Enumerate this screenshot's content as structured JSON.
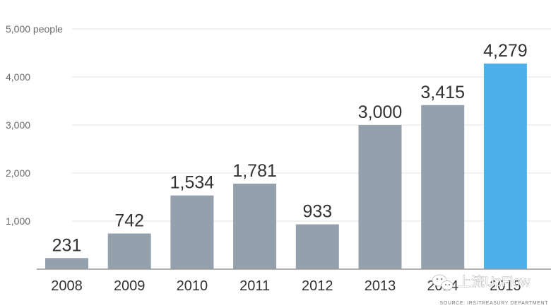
{
  "chart_data": {
    "type": "bar",
    "categories": [
      "2008",
      "2009",
      "2010",
      "2011",
      "2012",
      "2013",
      "2014",
      "2015"
    ],
    "values": [
      231,
      742,
      1534,
      1781,
      933,
      3000,
      3415,
      4279
    ],
    "value_labels": [
      "231",
      "742",
      "1,534",
      "1,781",
      "933",
      "3,000",
      "3,415",
      "4,279"
    ],
    "ylim": [
      0,
      5000
    ],
    "yticks": [
      1000,
      2000,
      3000,
      4000,
      5000
    ],
    "ytick_labels": [
      "1,000",
      "2,000",
      "3,000",
      "4,000",
      "5,000 people"
    ],
    "grid": true,
    "colors": {
      "default": "#95a0ad",
      "highlight": "#4eb0ea"
    },
    "highlight_index": 7
  },
  "source": "SOURCE: IRS/TREASURY DEPARTMENT",
  "watermark": {
    "text": "上流UpFlow",
    "icon": "wechat-icon"
  }
}
